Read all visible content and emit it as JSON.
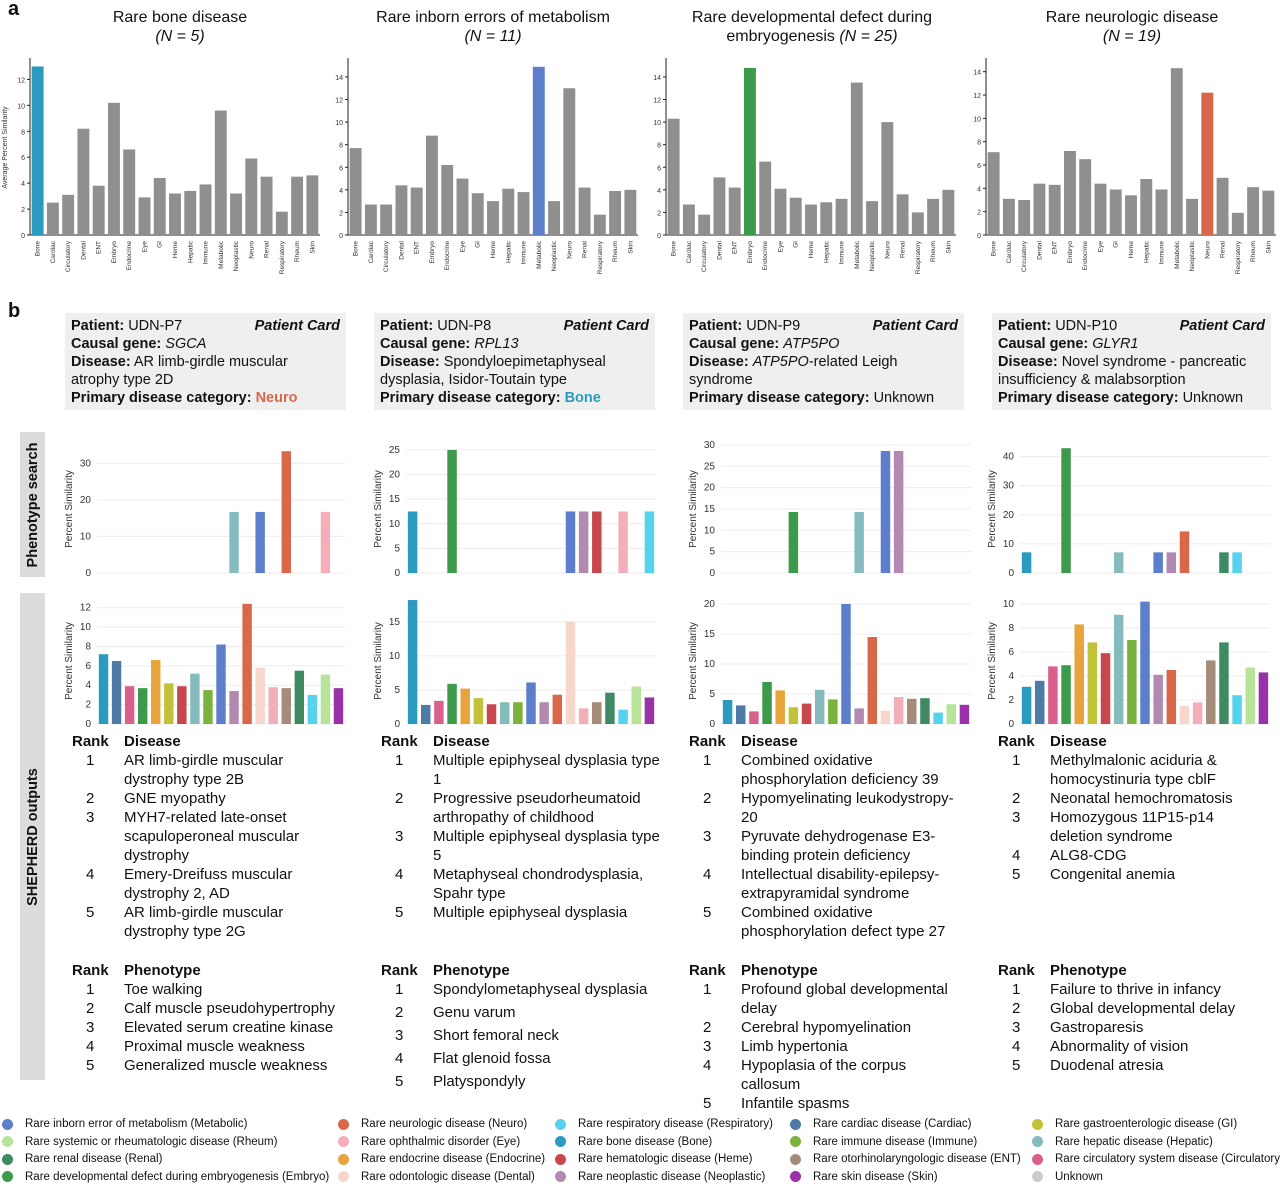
{
  "panel_a": "a",
  "panel_b": "b",
  "top_titles": [
    {
      "l1": "Rare bone disease",
      "l2": "(N = 5)",
      "italic_only": true
    },
    {
      "l1": "Rare inborn errors of metabolism",
      "l2": "(N = 11)",
      "italic_only": true
    },
    {
      "l1": "Rare developmental defect during",
      "l2a": "embryogenesis ",
      "l2b": "(N = 25)",
      "italic_only": false
    },
    {
      "l1": "Rare neurologic disease",
      "l2": "(N = 19)",
      "italic_only": true
    }
  ],
  "colors": {
    "Bone": "#2a9bbf",
    "Cardiac": "#4f7aa6",
    "Circulatory": "#d95f8c",
    "Dental": "#f7d7cb",
    "ENT": "#a58b79",
    "Embryo": "#3c9a4a",
    "Endocrine": "#e8a33a",
    "Eye": "#f4aeba",
    "GI": "#c2c23a",
    "Heme": "#c8474d",
    "Hepatic": "#86bbbd",
    "Immune": "#7ab33c",
    "Metabolic": "#5c7ecb",
    "Neoplastic": "#b28ab1",
    "Neuro": "#d9684a",
    "Renal": "#3f8a62",
    "Respiratory": "#55d2ee",
    "Rheum": "#b8e49a",
    "Skin": "#9932a8",
    "gray": "#8f8f8f"
  },
  "chart_data": [
    {
      "type": "bar",
      "panel": "a-bone",
      "ylabel": "Average Percent Similarity",
      "ylim": [
        0,
        13.5
      ],
      "yticks": [
        0,
        2,
        4,
        6,
        8,
        10,
        12
      ],
      "highlight": "Bone",
      "categories": [
        "Bone",
        "Cardiac",
        "Circulatory",
        "Dental",
        "ENT",
        "Embryo",
        "Endocrine",
        "Eye",
        "GI",
        "Heme",
        "Hepatic",
        "Immune",
        "Metabolic",
        "Neoplastic",
        "Neuro",
        "Renal",
        "Respiratory",
        "Rheum",
        "Skin"
      ],
      "values": [
        13.0,
        2.5,
        3.1,
        8.2,
        3.8,
        10.2,
        6.6,
        2.9,
        4.4,
        3.2,
        3.4,
        3.9,
        9.6,
        3.2,
        5.9,
        4.5,
        1.8,
        4.5,
        4.6
      ]
    },
    {
      "type": "bar",
      "panel": "a-metabolism",
      "ylabel": "",
      "ylim": [
        0,
        15.5
      ],
      "yticks": [
        0,
        2,
        4,
        6,
        8,
        10,
        12,
        14
      ],
      "highlight": "Metabolic",
      "categories": [
        "Bone",
        "Cardiac",
        "Circulatory",
        "Dental",
        "ENT",
        "Embryo",
        "Endocrine",
        "Eye",
        "GI",
        "Heme",
        "Hepatic",
        "Immune",
        "Metabolic",
        "Neoplastic",
        "Neuro",
        "Renal",
        "Respiratory",
        "Rheum",
        "Skin"
      ],
      "values": [
        7.7,
        2.7,
        2.7,
        4.4,
        4.2,
        8.8,
        6.2,
        5.0,
        3.7,
        3.0,
        4.1,
        3.8,
        14.9,
        3.0,
        13.0,
        4.2,
        1.8,
        3.9,
        4.0
      ]
    },
    {
      "type": "bar",
      "panel": "a-embryo",
      "ylabel": "",
      "ylim": [
        0,
        15.5
      ],
      "yticks": [
        0,
        2,
        4,
        6,
        8,
        10,
        12,
        14
      ],
      "highlight": "Embryo",
      "categories": [
        "Bone",
        "Cardiac",
        "Circulatory",
        "Dental",
        "ENT",
        "Embryo",
        "Endocrine",
        "Eye",
        "GI",
        "Heme",
        "Hepatic",
        "Immune",
        "Metabolic",
        "Neoplastic",
        "Neuro",
        "Renal",
        "Respiratory",
        "Rheum",
        "Skin"
      ],
      "values": [
        10.3,
        2.7,
        1.8,
        5.1,
        4.2,
        14.8,
        6.5,
        4.1,
        3.3,
        2.7,
        2.9,
        3.2,
        13.5,
        3.0,
        10.0,
        3.6,
        2.0,
        3.2,
        4.0
      ]
    },
    {
      "type": "bar",
      "panel": "a-neuro",
      "ylabel": "",
      "ylim": [
        0,
        15
      ],
      "yticks": [
        0,
        2,
        4,
        6,
        8,
        10,
        12,
        14
      ],
      "highlight": "Neuro",
      "categories": [
        "Bone",
        "Cardiac",
        "Circulatory",
        "Dental",
        "ENT",
        "Embryo",
        "Endocrine",
        "Eye",
        "GI",
        "Heme",
        "Hepatic",
        "Immune",
        "Metabolic",
        "Neoplastic",
        "Neuro",
        "Renal",
        "Respiratory",
        "Rheum",
        "Skin"
      ],
      "values": [
        7.1,
        3.1,
        3.0,
        4.4,
        4.3,
        7.2,
        6.5,
        4.4,
        3.9,
        3.4,
        4.8,
        3.9,
        14.3,
        3.1,
        12.2,
        4.9,
        1.9,
        4.1,
        3.8
      ]
    },
    {
      "type": "bar",
      "panel": "search-P7",
      "ylabel": "Percent Similarity",
      "ylim": [
        0,
        35
      ],
      "yticks": [
        0,
        10,
        20,
        30
      ],
      "categories": [
        "Bone",
        "Cardiac",
        "Circulatory",
        "Dental",
        "ENT",
        "Embryo",
        "Endocrine",
        "Eye",
        "GI",
        "Heme",
        "Hepatic",
        "Immune",
        "Metabolic",
        "Neoplastic",
        "Neuro",
        "Renal",
        "Respiratory",
        "Rheum",
        "Skin"
      ],
      "values": [
        0,
        0,
        0,
        0,
        0,
        0,
        0,
        0,
        0,
        0,
        16.7,
        0,
        16.7,
        0,
        33.3,
        0,
        0,
        16.7,
        0
      ],
      "bar_cats": [
        "Bone",
        "Cardiac",
        "Circulatory",
        "Dental",
        "ENT",
        "Embryo",
        "Endocrine",
        "Eye",
        "GI",
        "Heme",
        "Hepatic",
        "Immune",
        "Metabolic",
        "Neoplastic",
        "Neuro",
        "Renal",
        "Respiratory",
        "Rheum",
        "Skin"
      ],
      "colorcats": [
        "Bone",
        "Cardiac",
        "Circulatory",
        "Dental",
        "ENT",
        "Embryo",
        "Endocrine",
        "Eye",
        "GI",
        "Heme",
        "Hepatic",
        "Immune",
        "Metabolic",
        "Neoplastic",
        "Neuro",
        "Eye",
        "Respiratory",
        "Eye",
        "Skin"
      ]
    },
    {
      "type": "bar",
      "panel": "search-P8",
      "ylabel": "Percent Similarity",
      "ylim": [
        0,
        26
      ],
      "yticks": [
        0,
        5,
        10,
        15,
        20,
        25
      ],
      "categories": [
        "Bone",
        "Cardiac",
        "Circulatory",
        "Dental",
        "ENT",
        "Embryo",
        "Endocrine",
        "Eye",
        "GI",
        "Heme",
        "Hepatic",
        "Immune",
        "Metabolic",
        "Neoplastic",
        "Neuro",
        "Renal",
        "Respiratory",
        "Rheum",
        "Skin"
      ],
      "values": [
        12.5,
        0,
        0,
        25.0,
        0,
        0,
        0,
        0,
        0,
        0,
        0,
        0,
        12.5,
        12.5,
        12.5,
        0,
        12.5,
        0,
        12.5
      ],
      "colorcats": [
        "Bone",
        "Cardiac",
        "Circulatory",
        "Embryo",
        "ENT",
        "Embryo",
        "Endocrine",
        "Eye",
        "GI",
        "Heme",
        "Hepatic",
        "Immune",
        "Metabolic",
        "Neoplastic",
        "Heme",
        "Renal",
        "Eye",
        "Rheum",
        "Respiratory"
      ]
    },
    {
      "type": "bar",
      "panel": "search-P9",
      "ylabel": "Percent Similarity",
      "ylim": [
        0,
        30
      ],
      "yticks": [
        0,
        5,
        10,
        15,
        20,
        25,
        30
      ],
      "categories": [
        "Bone",
        "Cardiac",
        "Circulatory",
        "Dental",
        "ENT",
        "Embryo",
        "Endocrine",
        "Eye",
        "GI",
        "Heme",
        "Hepatic",
        "Immune",
        "Metabolic",
        "Neoplastic",
        "Neuro",
        "Renal",
        "Respiratory",
        "Rheum",
        "Skin"
      ],
      "values": [
        0,
        0,
        0,
        0,
        0,
        14.3,
        0,
        0,
        0,
        0,
        14.3,
        0,
        28.6,
        28.6,
        0,
        0,
        0,
        0,
        0
      ]
    },
    {
      "type": "bar",
      "panel": "search-P10",
      "ylabel": "Percent Similarity",
      "ylim": [
        0,
        44
      ],
      "yticks": [
        0,
        10,
        20,
        30,
        40
      ],
      "categories": [
        "Bone",
        "Cardiac",
        "Circulatory",
        "Dental",
        "ENT",
        "Embryo",
        "Endocrine",
        "Eye",
        "GI",
        "Heme",
        "Hepatic",
        "Immune",
        "Metabolic",
        "Neoplastic",
        "Neuro",
        "Renal",
        "Respiratory",
        "Rheum",
        "Skin"
      ],
      "values": [
        7.1,
        0,
        0,
        42.9,
        0,
        0,
        0,
        7.1,
        0,
        0,
        7.1,
        7.1,
        14.3,
        0,
        0,
        7.1,
        7.1,
        0,
        0
      ],
      "colorcats": [
        "Bone",
        "Cardiac",
        "Circulatory",
        "Embryo",
        "ENT",
        "Embryo",
        "Endocrine",
        "Hepatic",
        "GI",
        "Heme",
        "Metabolic",
        "Neoplastic",
        "Neuro",
        "Neoplastic",
        "Neuro",
        "Renal",
        "Respiratory",
        "Rheum",
        "Skin"
      ]
    },
    {
      "type": "bar",
      "panel": "shepherd-P7",
      "ylabel": "Percent Similarity",
      "ylim": [
        0,
        13
      ],
      "yticks": [
        0,
        2,
        4,
        6,
        8,
        10,
        12
      ],
      "categories": [
        "Bone",
        "Cardiac",
        "Circulatory",
        "Embryo",
        "Endocrine",
        "GI",
        "Heme",
        "Hepatic",
        "Immune",
        "Metabolic",
        "Neoplastic",
        "Neuro",
        "Dental",
        "Eye",
        "ENT",
        "Renal",
        "Respiratory",
        "Rheum",
        "Skin"
      ],
      "values": [
        7.2,
        6.5,
        3.9,
        3.7,
        6.6,
        4.2,
        3.9,
        5.2,
        3.5,
        8.2,
        3.4,
        12.4,
        5.8,
        3.8,
        3.7,
        5.5,
        3.0,
        5.1,
        3.7
      ]
    },
    {
      "type": "bar",
      "panel": "shepherd-P8",
      "ylabel": "Percent Similarity",
      "ylim": [
        0,
        18.5
      ],
      "yticks": [
        0,
        5,
        10,
        15
      ],
      "categories": [
        "Bone",
        "Cardiac",
        "Circulatory",
        "Embryo",
        "Endocrine",
        "GI",
        "Heme",
        "Hepatic",
        "Immune",
        "Metabolic",
        "Neoplastic",
        "Neuro",
        "Dental",
        "Eye",
        "ENT",
        "Renal",
        "Respiratory",
        "Rheum",
        "Skin"
      ],
      "values": [
        18.2,
        2.8,
        3.4,
        5.9,
        5.2,
        3.8,
        2.9,
        3.2,
        3.2,
        6.1,
        3.2,
        4.3,
        15.0,
        2.3,
        3.2,
        4.6,
        2.1,
        5.5,
        3.9
      ]
    },
    {
      "type": "bar",
      "panel": "shepherd-P9",
      "ylabel": "Percent Similarity",
      "ylim": [
        0,
        21
      ],
      "yticks": [
        0,
        5,
        10,
        15,
        20
      ],
      "categories": [
        "Bone",
        "Cardiac",
        "Circulatory",
        "Embryo",
        "Endocrine",
        "GI",
        "Heme",
        "Hepatic",
        "Immune",
        "Metabolic",
        "Neoplastic",
        "Neuro",
        "Dental",
        "Eye",
        "ENT",
        "Renal",
        "Respiratory",
        "Rheum",
        "Skin"
      ],
      "values": [
        4.0,
        3.1,
        2.1,
        7.0,
        5.6,
        2.8,
        3.4,
        5.7,
        4.1,
        20.0,
        2.6,
        14.5,
        2.2,
        4.5,
        4.2,
        4.3,
        1.9,
        3.3,
        3.2
      ]
    },
    {
      "type": "bar",
      "panel": "shepherd-P10",
      "ylabel": "Percent Similarity",
      "ylim": [
        0,
        10.5
      ],
      "yticks": [
        0,
        2,
        4,
        6,
        8,
        10
      ],
      "categories": [
        "Bone",
        "Cardiac",
        "Circulatory",
        "Embryo",
        "Endocrine",
        "GI",
        "Heme",
        "Hepatic",
        "Immune",
        "Metabolic",
        "Neoplastic",
        "Neuro",
        "Dental",
        "Eye",
        "ENT",
        "Renal",
        "Respiratory",
        "Rheum",
        "Skin"
      ],
      "values": [
        3.1,
        3.6,
        4.8,
        4.9,
        8.3,
        6.8,
        5.9,
        9.1,
        7.0,
        10.2,
        4.1,
        4.5,
        1.5,
        1.8,
        5.3,
        6.8,
        2.4,
        4.7,
        4.3
      ]
    }
  ],
  "cards": [
    {
      "patient_label": "Patient:",
      "patient": "UDN-P7",
      "tag": "Patient Card",
      "gene_label": "Causal gene:",
      "gene": "SGCA",
      "disease_label": "Disease:",
      "disease": "AR limb-girdle muscular atrophy type 2D",
      "cat_label": "Primary disease category:",
      "cat": "Neuro",
      "cat_color": "#d9684a"
    },
    {
      "patient_label": "Patient:",
      "patient": "UDN-P8",
      "tag": "Patient Card",
      "gene_label": "Causal gene:",
      "gene": "RPL13",
      "disease_label": "Disease:",
      "disease": "Spondyloepimetaphyseal dysplasia, Isidor-Toutain type",
      "cat_label": "Primary disease category:",
      "cat": "Bone",
      "cat_color": "#2a9bbf"
    },
    {
      "patient_label": "Patient:",
      "patient": "UDN-P9",
      "tag": "Patient Card",
      "gene_label": "Causal gene:",
      "gene": "ATP5PO",
      "disease_label": "Disease:",
      "disease_italic": "ATP5PO",
      "disease": "-related Leigh syndrome",
      "cat_label": "Primary disease category:",
      "cat": "Unknown",
      "cat_color": "#111111"
    },
    {
      "patient_label": "Patient:",
      "patient": "UDN-P10",
      "tag": "Patient Card",
      "gene_label": "Causal gene:",
      "gene": "GLYR1",
      "disease_label": "Disease:",
      "disease": "Novel syndrome - pancreatic insufficiency & malabsorption",
      "cat_label": "Primary disease category:",
      "cat": "Unknown",
      "cat_color": "#111111"
    }
  ],
  "side_labels": {
    "search": "Phenotype search",
    "shepherd": "SHEPHERD outputs"
  },
  "table_headers": {
    "rank": "Rank",
    "disease": "Disease",
    "phenotype": "Phenotype"
  },
  "disease_tables": [
    [
      [
        "1",
        "AR limb-girdle muscular dystrophy type 2B"
      ],
      [
        "2",
        "GNE myopathy"
      ],
      [
        "3",
        "MYH7-related late-onset scapuloperoneal muscular dystrophy"
      ],
      [
        "4",
        "Emery-Dreifuss muscular dystrophy 2, AD"
      ],
      [
        "5",
        "AR limb-girdle muscular dystrophy type 2G"
      ]
    ],
    [
      [
        "1",
        "Multiple epiphyseal dysplasia type 1"
      ],
      [
        "2",
        "Progressive pseudorheumatoid arthropathy of childhood"
      ],
      [
        "3",
        "Multiple epiphyseal dysplasia type 5"
      ],
      [
        "4",
        "Metaphyseal chondrodysplasia, Spahr type"
      ],
      [
        "5",
        "Multiple epiphyseal dysplasia"
      ]
    ],
    [
      [
        "1",
        "Combined oxidative phosphorylation deficiency 39"
      ],
      [
        "2",
        "Hypomyelinating leukodystropy-20"
      ],
      [
        "3",
        "Pyruvate dehydrogenase E3-binding protein deficiency"
      ],
      [
        "4",
        "Intellectual disability-epilepsy-extrapyramidal syndrome"
      ],
      [
        "5",
        "Combined oxidative phosphorylation defect type 27"
      ]
    ],
    [
      [
        "1",
        "Methylmalonic aciduria & homocystinuria type cblF"
      ],
      [
        "2",
        "Neonatal hemochromatosis"
      ],
      [
        "3",
        "Homozygous 11P15-p14 deletion syndrome"
      ],
      [
        "4",
        "ALG8-CDG"
      ],
      [
        "5",
        "Congenital anemia"
      ]
    ]
  ],
  "phenotype_tables": [
    [
      [
        "1",
        "Toe walking"
      ],
      [
        "2",
        "Calf muscle pseudohypertrophy"
      ],
      [
        "3",
        "Elevated serum creatine kinase"
      ],
      [
        "4",
        "Proximal muscle weakness"
      ],
      [
        "5",
        "Generalized muscle weakness"
      ]
    ],
    [
      [
        "1",
        "Spondylometaphyseal dysplasia"
      ],
      [
        "2",
        "Genu varum"
      ],
      [
        "3",
        "Short femoral neck"
      ],
      [
        "4",
        "Flat glenoid fossa"
      ],
      [
        "5",
        "Platyspondyly"
      ]
    ],
    [
      [
        "1",
        "Profound global developmental delay"
      ],
      [
        "2",
        "Cerebral hypomyelination"
      ],
      [
        "3",
        "Limb hypertonia"
      ],
      [
        "4",
        "Hypoplasia of the corpus callosum"
      ],
      [
        "5",
        "Infantile spasms"
      ]
    ],
    [
      [
        "1",
        "Failure to thrive in infancy"
      ],
      [
        "2",
        "Global developmental delay"
      ],
      [
        "3",
        "Gastroparesis"
      ],
      [
        "4",
        "Abnormality of vision"
      ],
      [
        "5",
        "Duodenal atresia"
      ]
    ]
  ],
  "legend": [
    {
      "label": "Rare inborn error of metabolism (Metabolic)",
      "color": "#5c7ecb"
    },
    {
      "label": "Rare systemic or rheumatologic disease (Rheum)",
      "color": "#b8e49a"
    },
    {
      "label": "Rare renal disease (Renal)",
      "color": "#3f8a62"
    },
    {
      "label": "Rare developmental defect during embryogenesis (Embryo)",
      "color": "#3c9a4a"
    },
    {
      "label": "Rare neurologic disease (Neuro)",
      "color": "#d9684a"
    },
    {
      "label": "Rare ophthalmic disorder (Eye)",
      "color": "#f4aeba"
    },
    {
      "label": "Rare endocrine disease (Endocrine)",
      "color": "#e8a33a"
    },
    {
      "label": "Rare  odontologic disease (Dental)",
      "color": "#f7d7cb"
    },
    {
      "label": "Rare respiratory disease (Respiratory)",
      "color": "#55d2ee"
    },
    {
      "label": "Rare bone disease (Bone)",
      "color": "#2a9bbf"
    },
    {
      "label": "Rare hematologic disease (Heme)",
      "color": "#c8474d"
    },
    {
      "label": "Rare neoplastic disease (Neoplastic)",
      "color": "#b28ab1"
    },
    {
      "label": "Rare cardiac disease (Cardiac)",
      "color": "#4f7aa6"
    },
    {
      "label": "Rare immune disease (Immune)",
      "color": "#7ab33c"
    },
    {
      "label": "Rare otorhinolaryngologic disease (ENT)",
      "color": "#a58b79"
    },
    {
      "label": "Rare skin disease (Skin)",
      "color": "#9932a8"
    },
    {
      "label": "Rare gastroenterologic disease (GI)",
      "color": "#c2c23a"
    },
    {
      "label": "Rare hepatic disease (Hepatic)",
      "color": "#86bbbd"
    },
    {
      "label": "Rare circulatory system disease (Circulatory)",
      "color": "#d95f8c"
    },
    {
      "label": "Unknown",
      "color": "#cccccc"
    }
  ]
}
